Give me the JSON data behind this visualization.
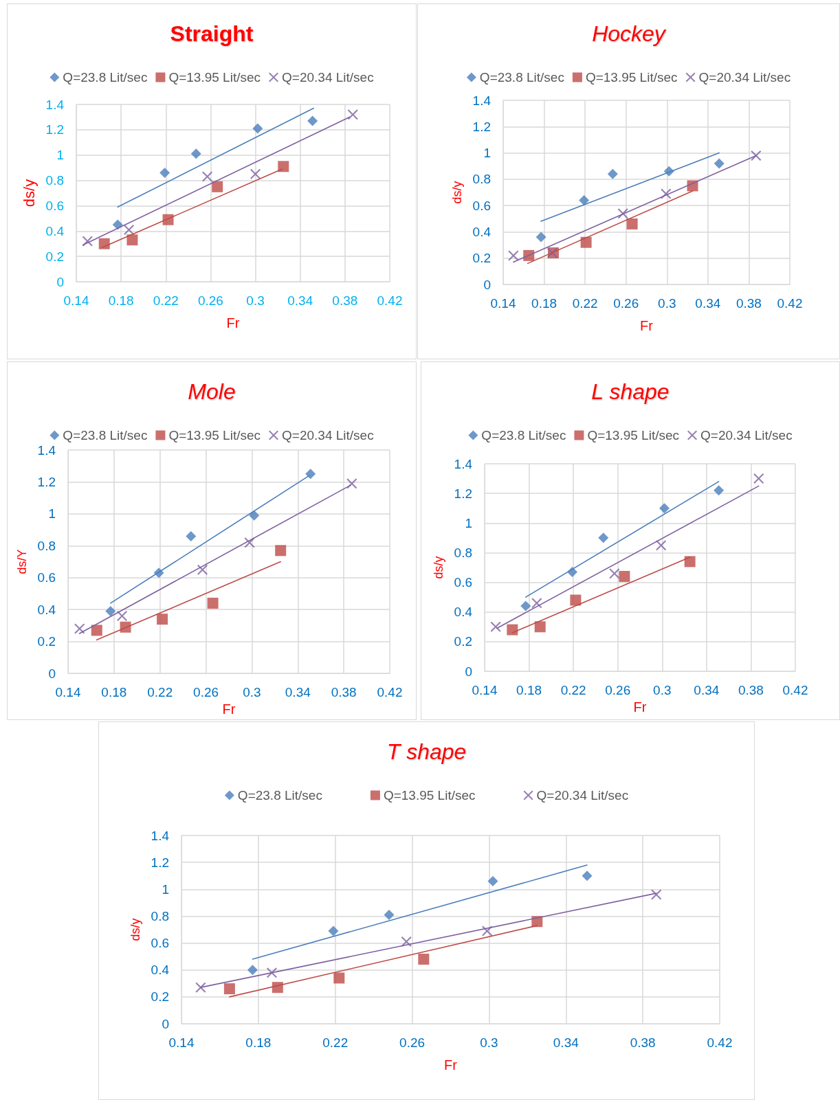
{
  "chart_data": [
    {
      "type": "scatter",
      "title": "Straight",
      "xlabel": "Fr",
      "ylabel": "ds/y",
      "xlim": [
        0.14,
        0.42
      ],
      "xticks": [
        0.14,
        0.18,
        0.22,
        0.26,
        0.3,
        0.34,
        0.38,
        0.42
      ],
      "ylim": [
        0,
        1.4
      ],
      "yticks": [
        0,
        0.2,
        0.4,
        0.6,
        0.8,
        1,
        1.2,
        1.4
      ],
      "grid": true,
      "legend": "top",
      "series": [
        {
          "name": "Q=23.8 Lit/sec",
          "color": "#4a7ebb",
          "marker": "diamond",
          "x": [
            0.177,
            0.219,
            0.247,
            0.302,
            0.351
          ],
          "values": [
            0.45,
            0.86,
            1.01,
            1.21,
            1.27
          ]
        },
        {
          "name": "Q=13.95 Lit/sec",
          "color": "#be4b48",
          "marker": "square",
          "x": [
            0.165,
            0.19,
            0.222,
            0.266,
            0.325
          ],
          "values": [
            0.3,
            0.33,
            0.49,
            0.75,
            0.91
          ]
        },
        {
          "name": "Q=20.34 Lit/sec",
          "color": "#7d60a0",
          "marker": "cross",
          "x": [
            0.15,
            0.187,
            0.257,
            0.3,
            0.387
          ],
          "values": [
            0.32,
            0.41,
            0.83,
            0.85,
            1.32
          ]
        },
        {
          "type": "line",
          "color": "#4a7ebb",
          "marker": "none",
          "x": [
            0.177,
            0.352
          ],
          "values": [
            0.59,
            1.37
          ]
        },
        {
          "type": "line",
          "color": "#be4b48",
          "marker": "none",
          "x": [
            0.163,
            0.324
          ],
          "values": [
            0.27,
            0.89
          ]
        },
        {
          "type": "line",
          "color": "#7d60a0",
          "marker": "none",
          "x": [
            0.146,
            0.384
          ],
          "values": [
            0.29,
            1.3
          ]
        }
      ]
    },
    {
      "type": "scatter",
      "title": "Hockey",
      "xlabel": "Fr",
      "ylabel": "ds/y",
      "xlim": [
        0.14,
        0.42
      ],
      "xticks": [
        0.14,
        0.18,
        0.22,
        0.26,
        0.3,
        0.34,
        0.38,
        0.42
      ],
      "ylim": [
        0,
        1.4
      ],
      "yticks": [
        0,
        0.2,
        0.4,
        0.6,
        0.8,
        1,
        1.2,
        1.4
      ],
      "grid": true,
      "legend": "top",
      "series": [
        {
          "name": "Q=23.8 Lit/sec",
          "color": "#4a7ebb",
          "marker": "diamond",
          "x": [
            0.177,
            0.219,
            0.247,
            0.302,
            0.351
          ],
          "values": [
            0.36,
            0.64,
            0.84,
            0.86,
            0.92
          ]
        },
        {
          "name": "Q=13.95 Lit/sec",
          "color": "#be4b48",
          "marker": "square",
          "x": [
            0.165,
            0.189,
            0.221,
            0.266,
            0.325
          ],
          "values": [
            0.22,
            0.24,
            0.32,
            0.46,
            0.75
          ]
        },
        {
          "name": "Q=20.34 Lit/sec",
          "color": "#7d60a0",
          "marker": "cross",
          "x": [
            0.15,
            0.188,
            0.257,
            0.299,
            0.387
          ],
          "values": [
            0.22,
            0.24,
            0.54,
            0.69,
            0.98
          ]
        },
        {
          "type": "line",
          "color": "#4a7ebb",
          "marker": "none",
          "x": [
            0.177,
            0.351
          ],
          "values": [
            0.48,
            1
          ]
        },
        {
          "type": "line",
          "color": "#be4b48",
          "marker": "none",
          "x": [
            0.164,
            0.325
          ],
          "values": [
            0.16,
            0.71
          ]
        },
        {
          "type": "line",
          "color": "#7d60a0",
          "marker": "none",
          "x": [
            0.15,
            0.387
          ],
          "values": [
            0.17,
            0.98
          ]
        }
      ]
    },
    {
      "type": "scatter",
      "title": "Mole",
      "xlabel": "Fr",
      "ylabel": "ds/Y",
      "xlim": [
        0.14,
        0.42
      ],
      "xticks": [
        0.14,
        0.18,
        0.22,
        0.26,
        0.3,
        0.34,
        0.38,
        0.42
      ],
      "ylim": [
        0,
        1.4
      ],
      "yticks": [
        0,
        0.2,
        0.4,
        0.6,
        0.8,
        1,
        1.2,
        1.4
      ],
      "grid": true,
      "legend": "top",
      "series": [
        {
          "name": "Q=23.8 Lit/sec",
          "color": "#4a7ebb",
          "marker": "diamond",
          "x": [
            0.177,
            0.219,
            0.247,
            0.302,
            0.351
          ],
          "values": [
            0.39,
            0.63,
            0.86,
            0.99,
            1.25
          ]
        },
        {
          "name": "Q=13.95 Lit/sec",
          "color": "#be4b48",
          "marker": "square",
          "x": [
            0.165,
            0.19,
            0.222,
            0.266,
            0.325
          ],
          "values": [
            0.27,
            0.29,
            0.34,
            0.44,
            0.77
          ]
        },
        {
          "name": "Q=20.34 Lit/sec",
          "color": "#7d60a0",
          "marker": "cross",
          "x": [
            0.15,
            0.187,
            0.257,
            0.298,
            0.387
          ],
          "values": [
            0.28,
            0.36,
            0.65,
            0.82,
            1.19
          ]
        },
        {
          "type": "line",
          "color": "#4a7ebb",
          "marker": "none",
          "x": [
            0.177,
            0.35
          ],
          "values": [
            0.44,
            1.24
          ]
        },
        {
          "type": "line",
          "color": "#be4b48",
          "marker": "none",
          "x": [
            0.165,
            0.325
          ],
          "values": [
            0.21,
            0.7
          ]
        },
        {
          "type": "line",
          "color": "#7d60a0",
          "marker": "none",
          "x": [
            0.15,
            0.386
          ],
          "values": [
            0.25,
            1.18
          ]
        }
      ]
    },
    {
      "type": "scatter",
      "title": "L shape",
      "xlabel": "Fr",
      "ylabel": "ds/y",
      "xlim": [
        0.14,
        0.42
      ],
      "xticks": [
        0.14,
        0.18,
        0.22,
        0.26,
        0.3,
        0.34,
        0.38,
        0.42
      ],
      "ylim": [
        0,
        1.4
      ],
      "yticks": [
        0,
        0.2,
        0.4,
        0.6,
        0.8,
        1,
        1.2,
        1.4
      ],
      "grid": true,
      "legend": "top",
      "series": [
        {
          "name": "Q=23.8 Lit/sec",
          "color": "#4a7ebb",
          "marker": "diamond",
          "x": [
            0.177,
            0.219,
            0.247,
            0.302,
            0.351
          ],
          "values": [
            0.44,
            0.67,
            0.9,
            1.1,
            1.22
          ]
        },
        {
          "name": "Q=13.95 Lit/sec",
          "color": "#be4b48",
          "marker": "square",
          "x": [
            0.165,
            0.19,
            0.222,
            0.266,
            0.325
          ],
          "values": [
            0.28,
            0.3,
            0.48,
            0.64,
            0.74
          ]
        },
        {
          "name": "Q=20.34 Lit/sec",
          "color": "#7d60a0",
          "marker": "cross",
          "x": [
            0.15,
            0.187,
            0.257,
            0.299,
            0.387
          ],
          "values": [
            0.3,
            0.46,
            0.66,
            0.85,
            1.3
          ]
        },
        {
          "type": "line",
          "color": "#4a7ebb",
          "marker": "none",
          "x": [
            0.177,
            0.351
          ],
          "values": [
            0.5,
            1.28
          ]
        },
        {
          "type": "line",
          "color": "#be4b48",
          "marker": "none",
          "x": [
            0.165,
            0.325
          ],
          "values": [
            0.26,
            0.77
          ]
        },
        {
          "type": "line",
          "color": "#7d60a0",
          "marker": "none",
          "x": [
            0.151,
            0.387
          ],
          "values": [
            0.29,
            1.25
          ]
        }
      ]
    },
    {
      "type": "scatter",
      "title": "T shape",
      "xlabel": "Fr",
      "ylabel": "ds/y",
      "xlim": [
        0.14,
        0.42
      ],
      "xticks": [
        0.14,
        0.18,
        0.22,
        0.26,
        0.3,
        0.34,
        0.38,
        0.42
      ],
      "ylim": [
        0,
        1.4
      ],
      "yticks": [
        0,
        0.2,
        0.4,
        0.6,
        0.8,
        1,
        1.2,
        1.4
      ],
      "grid": true,
      "legend": "top",
      "series": [
        {
          "name": "Q=23.8 Lit/sec",
          "color": "#4a7ebb",
          "marker": "diamond",
          "x": [
            0.177,
            0.219,
            0.248,
            0.302,
            0.351
          ],
          "values": [
            0.4,
            0.69,
            0.81,
            1.06,
            1.1
          ]
        },
        {
          "name": "Q=13.95 Lit/sec",
          "color": "#be4b48",
          "marker": "square",
          "x": [
            0.165,
            0.19,
            0.222,
            0.266,
            0.325
          ],
          "values": [
            0.26,
            0.27,
            0.34,
            0.48,
            0.76
          ]
        },
        {
          "name": "Q=20.34 Lit/sec",
          "color": "#7d60a0",
          "marker": "cross",
          "x": [
            0.15,
            0.187,
            0.257,
            0.299,
            0.387
          ],
          "values": [
            0.27,
            0.38,
            0.61,
            0.69,
            0.96
          ]
        },
        {
          "type": "line",
          "color": "#4a7ebb",
          "marker": "none",
          "x": [
            0.177,
            0.351
          ],
          "values": [
            0.48,
            1.18
          ]
        },
        {
          "type": "line",
          "color": "#be4b48",
          "marker": "none",
          "x": [
            0.165,
            0.325
          ],
          "values": [
            0.2,
            0.73
          ]
        },
        {
          "type": "line",
          "color": "#7d60a0",
          "marker": "none",
          "x": [
            0.15,
            0.387
          ],
          "values": [
            0.27,
            0.97
          ]
        }
      ]
    }
  ]
}
